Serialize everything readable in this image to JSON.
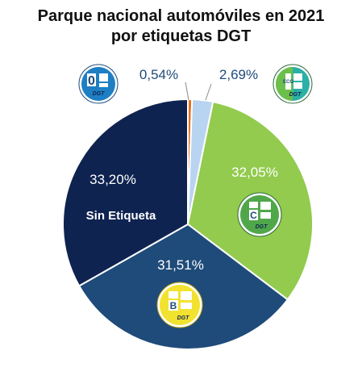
{
  "chart_data": {
    "type": "pie",
    "title_line1": "Parque nacional automóviles en 2021",
    "title_line2": "por etiquetas DGT",
    "slices": [
      {
        "label": "0",
        "value_label": "0,54%",
        "value": 0.54,
        "color": "#e8701c"
      },
      {
        "label": "ECO",
        "value_label": "2,69%",
        "value": 2.69,
        "color": "#b8d4f0"
      },
      {
        "label": "C",
        "value_label": "32,05%",
        "value": 32.05,
        "color": "#92cb4d"
      },
      {
        "label": "B",
        "value_label": "31,51%",
        "value": 31.51,
        "color": "#1f4b7a"
      },
      {
        "label": "Sin Etiqueta",
        "value_label": "33,20%",
        "value": 33.2,
        "color": "#0f2350"
      }
    ]
  },
  "badges": {
    "zero": {
      "letter": "0",
      "brand": "DGT",
      "bg": "#1f7fc4"
    },
    "eco": {
      "letter": "ECO",
      "brand": "DGT",
      "bg": "#2bb0a5"
    },
    "c": {
      "letter": "C",
      "brand": "DGT",
      "bg": "#4fa74a"
    },
    "b": {
      "letter": "B",
      "brand": "DGT",
      "bg": "#f2e230"
    }
  }
}
